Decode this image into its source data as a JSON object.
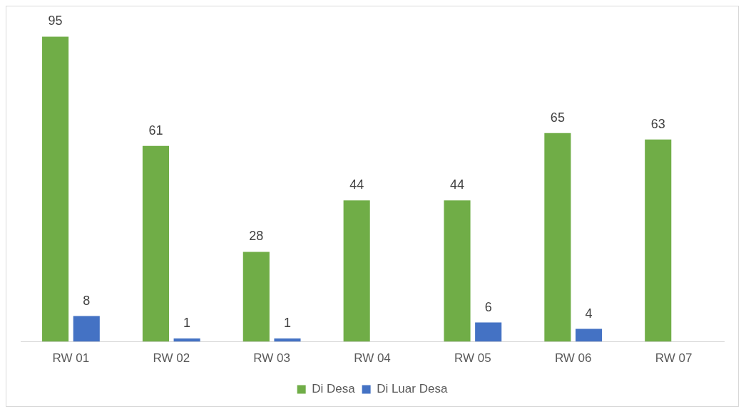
{
  "chart_data": {
    "type": "bar",
    "categories": [
      "RW 01",
      "RW 02",
      "RW 03",
      "RW 04",
      "RW 05",
      "RW 06",
      "RW 07"
    ],
    "series": [
      {
        "name": "Di Desa",
        "color": "#70ad47",
        "values": [
          95,
          61,
          28,
          44,
          44,
          65,
          63
        ]
      },
      {
        "name": "Di Luar Desa",
        "color": "#4472c4",
        "values": [
          8,
          1,
          1,
          null,
          6,
          4,
          null
        ]
      }
    ],
    "data_labels": true,
    "legend": "bottom",
    "grid": false
  }
}
